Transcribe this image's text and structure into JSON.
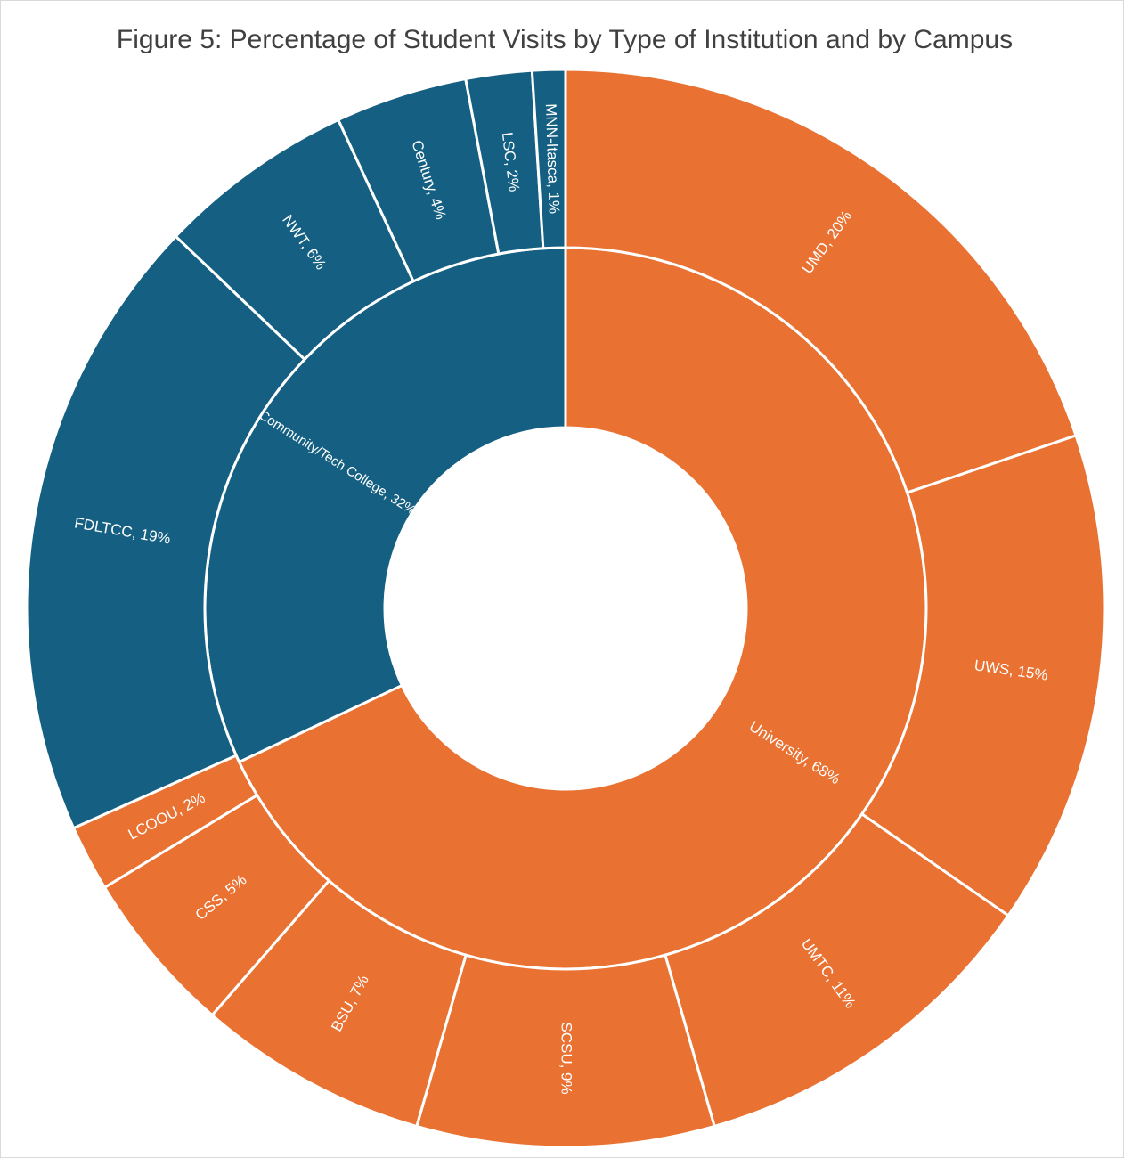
{
  "chart_data": {
    "type": "sunburst",
    "title": "Figure 5: Percentage of Student Visits by Type of Institution and by Campus",
    "groups": [
      {
        "label": "University, 68%",
        "value": 68,
        "color": "#e97132",
        "children": [
          {
            "label": "UMD, 20%",
            "value": 20
          },
          {
            "label": "UWS, 15%",
            "value": 15
          },
          {
            "label": "UMTC, 11%",
            "value": 11
          },
          {
            "label": "SCSU, 9%",
            "value": 9
          },
          {
            "label": "BSU, 7%",
            "value": 7
          },
          {
            "label": "CSS, 5%",
            "value": 5
          },
          {
            "label": "LCOOU, 2%",
            "value": 2
          }
        ]
      },
      {
        "label": "Community/Tech College, 32%",
        "value": 32,
        "color": "#156082",
        "children": [
          {
            "label": "FDLTCC, 19%",
            "value": 19
          },
          {
            "label": "NWT, 6%",
            "value": 6
          },
          {
            "label": "Century, 4%",
            "value": 4
          },
          {
            "label": "LSC, 2%",
            "value": 2
          },
          {
            "label": "MNN-Itasca, 1%",
            "value": 1
          }
        ]
      }
    ]
  }
}
